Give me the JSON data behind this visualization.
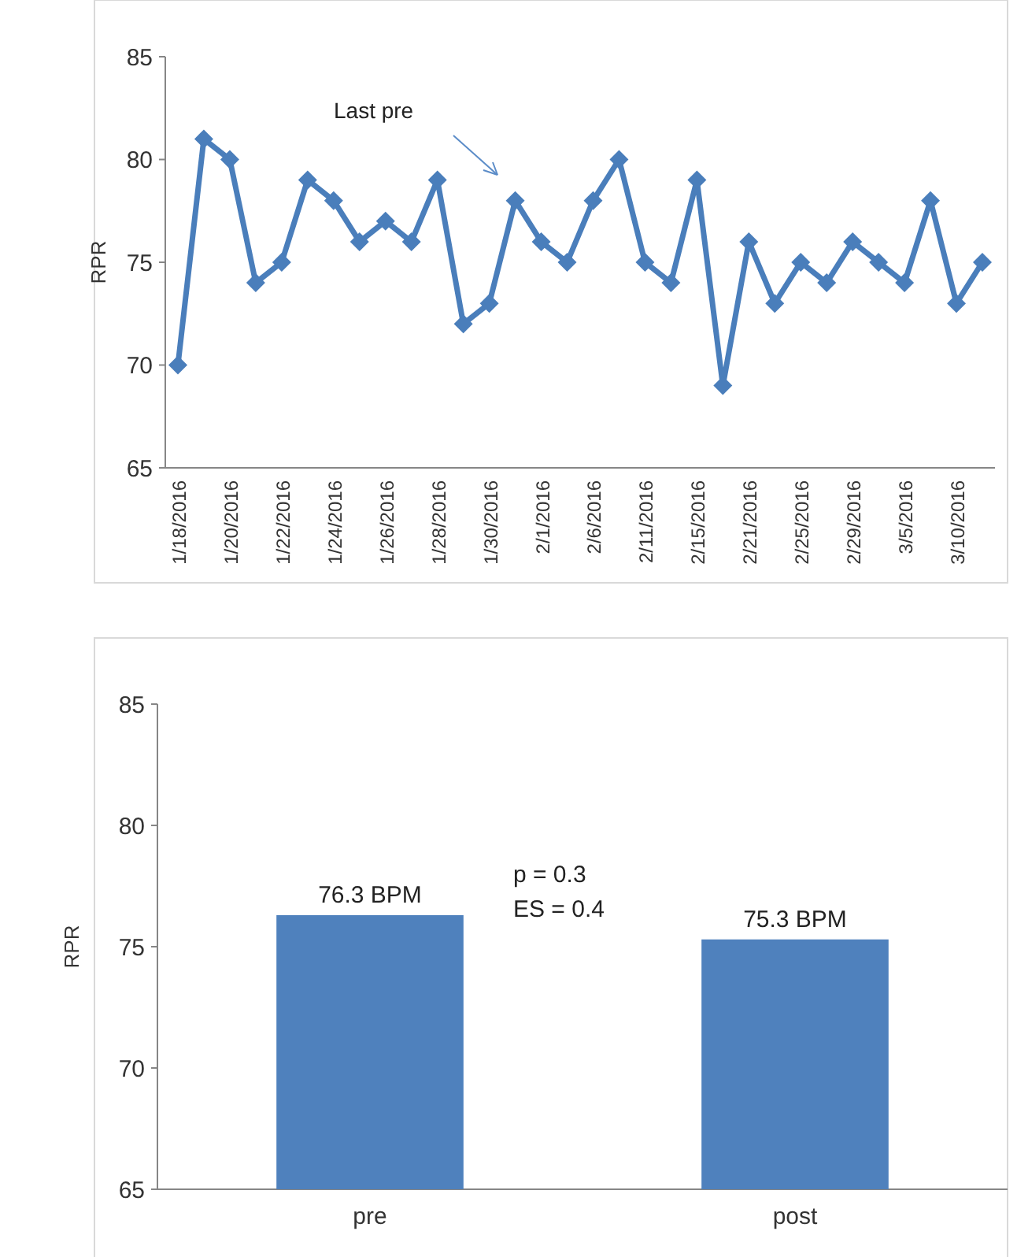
{
  "chart_data": [
    {
      "type": "line",
      "ylabel": "RPR",
      "categories": [
        "1/18/2016",
        null,
        "1/20/2016",
        null,
        "1/22/2016",
        null,
        "1/24/2016",
        null,
        "1/26/2016",
        null,
        "1/28/2016",
        null,
        "1/30/2016",
        null,
        "2/1/2016",
        null,
        "2/6/2016",
        null,
        "2/11/2016",
        null,
        "2/15/2016",
        null,
        "2/21/2016",
        null,
        "2/25/2016",
        null,
        "2/29/2016",
        null,
        "3/5/2016",
        null,
        "3/10/2016",
        null
      ],
      "series": [
        {
          "color": "#4a7ebb",
          "values": [
            70,
            81,
            80,
            74,
            75,
            79,
            78,
            76,
            77,
            76,
            79,
            72,
            73,
            78,
            76,
            75,
            78,
            80,
            75,
            74,
            79,
            69,
            76,
            73,
            75,
            74,
            76,
            75,
            74,
            78,
            73,
            75
          ]
        }
      ],
      "ylim": [
        65,
        85
      ],
      "yticks": [
        65,
        70,
        75,
        80,
        85
      ],
      "grid": false,
      "marker": "diamond",
      "line_style": "solid",
      "annotations": [
        "Last pre"
      ]
    },
    {
      "type": "bar",
      "ylabel": "RPR",
      "categories": [
        "pre",
        "post"
      ],
      "values": [
        76.3,
        75.3
      ],
      "value_labels": [
        "76.3 BPM",
        "75.3 BPM"
      ],
      "color": "#4f81bd",
      "ylim": [
        65,
        85
      ],
      "yticks": [
        65,
        70,
        75,
        80,
        85
      ],
      "grid": false,
      "annotations": [
        "p = 0.3",
        "ES = 0.4"
      ]
    }
  ]
}
